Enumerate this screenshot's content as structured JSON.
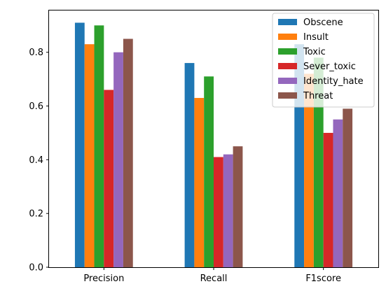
{
  "chart_data": {
    "type": "bar",
    "categories": [
      "Precision",
      "Recall",
      "F1score"
    ],
    "series": [
      {
        "name": "Obscene",
        "color": "#1f77b4",
        "values": [
          0.91,
          0.76,
          0.83
        ]
      },
      {
        "name": "Insult",
        "color": "#ff7f0e",
        "values": [
          0.83,
          0.63,
          0.72
        ]
      },
      {
        "name": "Toxic",
        "color": "#2ca02c",
        "values": [
          0.9,
          0.71,
          0.78
        ]
      },
      {
        "name": "Sever_toxic",
        "color": "#d62728",
        "values": [
          0.66,
          0.41,
          0.5
        ]
      },
      {
        "name": "Identity_hate",
        "color": "#9467bd",
        "values": [
          0.8,
          0.42,
          0.55
        ]
      },
      {
        "name": "Threat",
        "color": "#8c564b",
        "values": [
          0.85,
          0.45,
          0.59
        ]
      }
    ],
    "yticks": [
      "0.0",
      "0.2",
      "0.4",
      "0.6",
      "0.8"
    ],
    "ylim": [
      0,
      0.9555
    ],
    "title": "",
    "xlabel": "",
    "ylabel": "",
    "grid": false,
    "legend_position": "upper right"
  }
}
